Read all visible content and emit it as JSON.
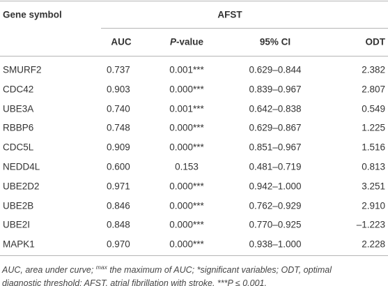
{
  "table": {
    "header": {
      "gene_symbol": "Gene symbol",
      "group": "AFST",
      "columns": [
        "AUC",
        {
          "italic": "P",
          "text": "-value"
        },
        "95% CI",
        "ODT"
      ]
    },
    "rows": [
      [
        "SMURF2",
        "0.737",
        "0.001***",
        "0.629–0.844",
        "2.382"
      ],
      [
        "CDC42",
        "0.903",
        "0.000***",
        "0.839–0.967",
        "2.807"
      ],
      [
        "UBE3A",
        "0.740",
        "0.001***",
        "0.642–0.838",
        "0.549"
      ],
      [
        "RBBP6",
        "0.748",
        "0.000***",
        "0.629–0.867",
        "1.225"
      ],
      [
        "CDC5L",
        "0.909",
        "0.000***",
        "0.851–0.967",
        "1.516"
      ],
      [
        "NEDD4L",
        "0.600",
        "0.153",
        "0.481–0.719",
        "0.813"
      ],
      [
        "UBE2D2",
        "0.971",
        "0.000***",
        "0.942–1.000",
        "3.251"
      ],
      [
        "UBE2B",
        "0.846",
        "0.000***",
        "0.762–0.929",
        "2.910"
      ],
      [
        "UBE2I",
        "0.848",
        "0.000***",
        "0.770–0.925",
        "–1.223"
      ],
      [
        "MAPK1",
        "0.970",
        "0.000***",
        "0.938–1.000",
        "2.228"
      ]
    ]
  },
  "footnote": {
    "part1": "AUC, area under curve; ",
    "sup": "max",
    "part2": " the maximum of AUC; *significant variables; ODT, optimal",
    "part3": "diagnostic threshold; AFST, atrial fibrillation with stroke. ***P ≤ 0.001."
  }
}
